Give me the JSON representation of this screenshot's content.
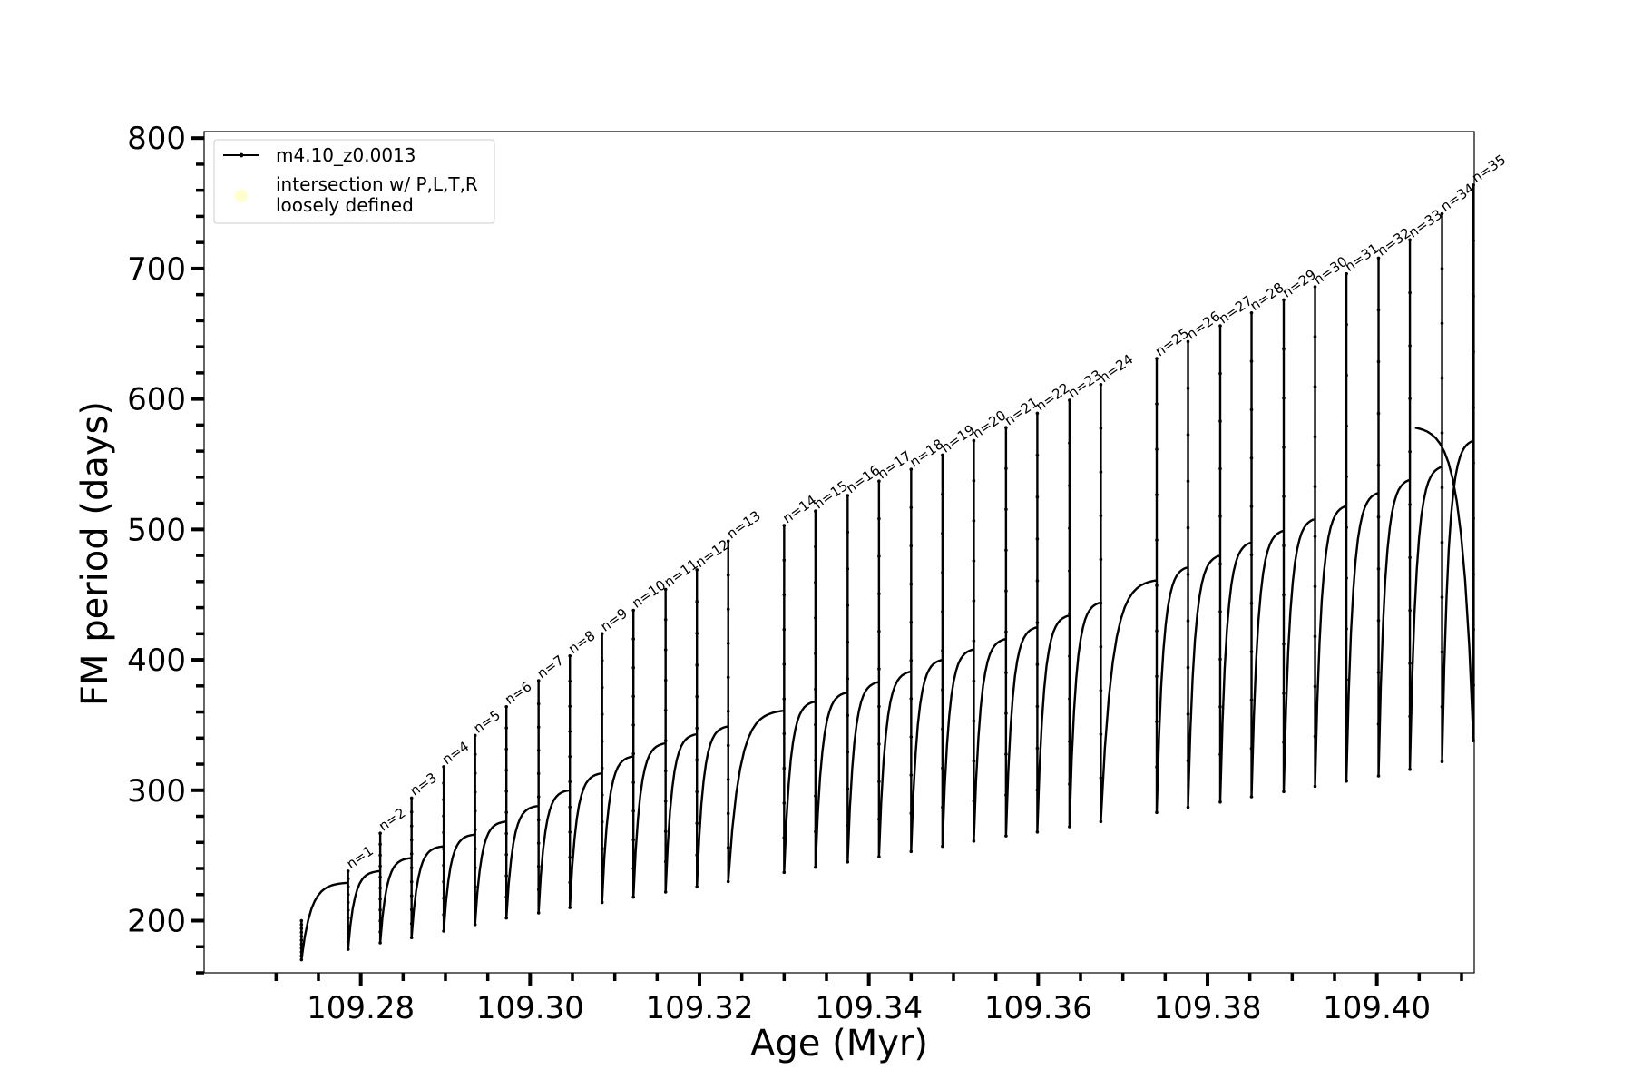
{
  "chart_data": {
    "type": "line",
    "title": "",
    "xlabel": "Age (Myr)",
    "ylabel": "FM period (days)",
    "xlim": [
      109.2615,
      109.4115
    ],
    "ylim": [
      160,
      805
    ],
    "x_ticks": [
      109.28,
      109.3,
      109.32,
      109.34,
      109.36,
      109.38,
      109.4
    ],
    "x_tick_labels": [
      "109.28",
      "109.30",
      "109.32",
      "109.34",
      "109.36",
      "109.38",
      "109.40"
    ],
    "y_ticks": [
      200,
      300,
      400,
      500,
      600,
      700,
      800
    ],
    "y_tick_labels": [
      "200",
      "300",
      "400",
      "500",
      "600",
      "700",
      "800"
    ],
    "grid": false,
    "legend_position": "upper-left",
    "legend": [
      {
        "label": "m4.10_z0.0013",
        "style": "line-with-points",
        "color": "#000000"
      },
      {
        "label": "intersection w/ P,L,T,R\nloosely defined",
        "style": "marker",
        "color": "#ffffcc"
      }
    ],
    "start": {
      "x": 109.273,
      "y_top": 200,
      "y_min": 170
    },
    "end": {
      "x": 109.4045,
      "y": 578
    },
    "pulses": [
      {
        "label": "n=1",
        "x": 109.2785,
        "peak": 238,
        "trough": 178,
        "pre": 229
      },
      {
        "label": "n=2",
        "x": 109.2823,
        "peak": 267,
        "trough": 183,
        "pre": 238
      },
      {
        "label": "n=3",
        "x": 109.286,
        "peak": 294,
        "trough": 187,
        "pre": 248
      },
      {
        "label": "n=4",
        "x": 109.2898,
        "peak": 318,
        "trough": 192,
        "pre": 257
      },
      {
        "label": "n=5",
        "x": 109.2935,
        "peak": 342,
        "trough": 197,
        "pre": 266
      },
      {
        "label": "n=6",
        "x": 109.2972,
        "peak": 364,
        "trough": 202,
        "pre": 276
      },
      {
        "label": "n=7",
        "x": 109.301,
        "peak": 384,
        "trough": 206,
        "pre": 288
      },
      {
        "label": "n=8",
        "x": 109.3047,
        "peak": 403,
        "trough": 210,
        "pre": 300
      },
      {
        "label": "n=9",
        "x": 109.3085,
        "peak": 420,
        "trough": 214,
        "pre": 313
      },
      {
        "label": "n=10",
        "x": 109.3122,
        "peak": 438,
        "trough": 218,
        "pre": 326
      },
      {
        "label": "n=11",
        "x": 109.316,
        "peak": 454,
        "trough": 222,
        "pre": 336
      },
      {
        "label": "n=12",
        "x": 109.3197,
        "peak": 469,
        "trough": 226,
        "pre": 343
      },
      {
        "label": "n=13",
        "x": 109.3234,
        "peak": 491,
        "trough": 230,
        "pre": 349
      },
      {
        "label": "n=14",
        "x": 109.33,
        "peak": 503,
        "trough": 237,
        "pre": 361
      },
      {
        "label": "n=15",
        "x": 109.3337,
        "peak": 514,
        "trough": 241,
        "pre": 368
      },
      {
        "label": "n=16",
        "x": 109.3375,
        "peak": 526,
        "trough": 245,
        "pre": 375
      },
      {
        "label": "n=17",
        "x": 109.3412,
        "peak": 537,
        "trough": 249,
        "pre": 383
      },
      {
        "label": "n=18",
        "x": 109.345,
        "peak": 546,
        "trough": 253,
        "pre": 391
      },
      {
        "label": "n=19",
        "x": 109.3487,
        "peak": 557,
        "trough": 257,
        "pre": 400
      },
      {
        "label": "n=20",
        "x": 109.3524,
        "peak": 568,
        "trough": 261,
        "pre": 408
      },
      {
        "label": "n=21",
        "x": 109.3562,
        "peak": 578,
        "trough": 265,
        "pre": 416
      },
      {
        "label": "n=22",
        "x": 109.3599,
        "peak": 589,
        "trough": 268,
        "pre": 425
      },
      {
        "label": "n=23",
        "x": 109.3637,
        "peak": 599,
        "trough": 272,
        "pre": 434
      },
      {
        "label": "n=24",
        "x": 109.3674,
        "peak": 611,
        "trough": 276,
        "pre": 444
      },
      {
        "label": "n=25",
        "x": 109.374,
        "peak": 631,
        "trough": 283,
        "pre": 461
      },
      {
        "label": "n=26",
        "x": 109.3777,
        "peak": 644,
        "trough": 287,
        "pre": 471
      },
      {
        "label": "n=27",
        "x": 109.3815,
        "peak": 656,
        "trough": 291,
        "pre": 480
      },
      {
        "label": "n=28",
        "x": 109.3852,
        "peak": 666,
        "trough": 295,
        "pre": 490
      },
      {
        "label": "n=29",
        "x": 109.389,
        "peak": 676,
        "trough": 299,
        "pre": 499
      },
      {
        "label": "n=30",
        "x": 109.3927,
        "peak": 686,
        "trough": 303,
        "pre": 508
      },
      {
        "label": "n=31",
        "x": 109.3964,
        "peak": 696,
        "trough": 307,
        "pre": 518
      },
      {
        "label": "n=32",
        "x": 109.4002,
        "peak": 708,
        "trough": 311,
        "pre": 528
      },
      {
        "label": "n=33",
        "x": 109.4039,
        "peak": 722,
        "trough": 316,
        "pre": 538
      },
      {
        "label": "n=34",
        "x": 109.4077,
        "peak": 742,
        "trough": 322,
        "pre": 548
      },
      {
        "label": "n=35",
        "x": 109.4114,
        "peak": 764,
        "trough": 338,
        "pre": 568
      }
    ]
  }
}
